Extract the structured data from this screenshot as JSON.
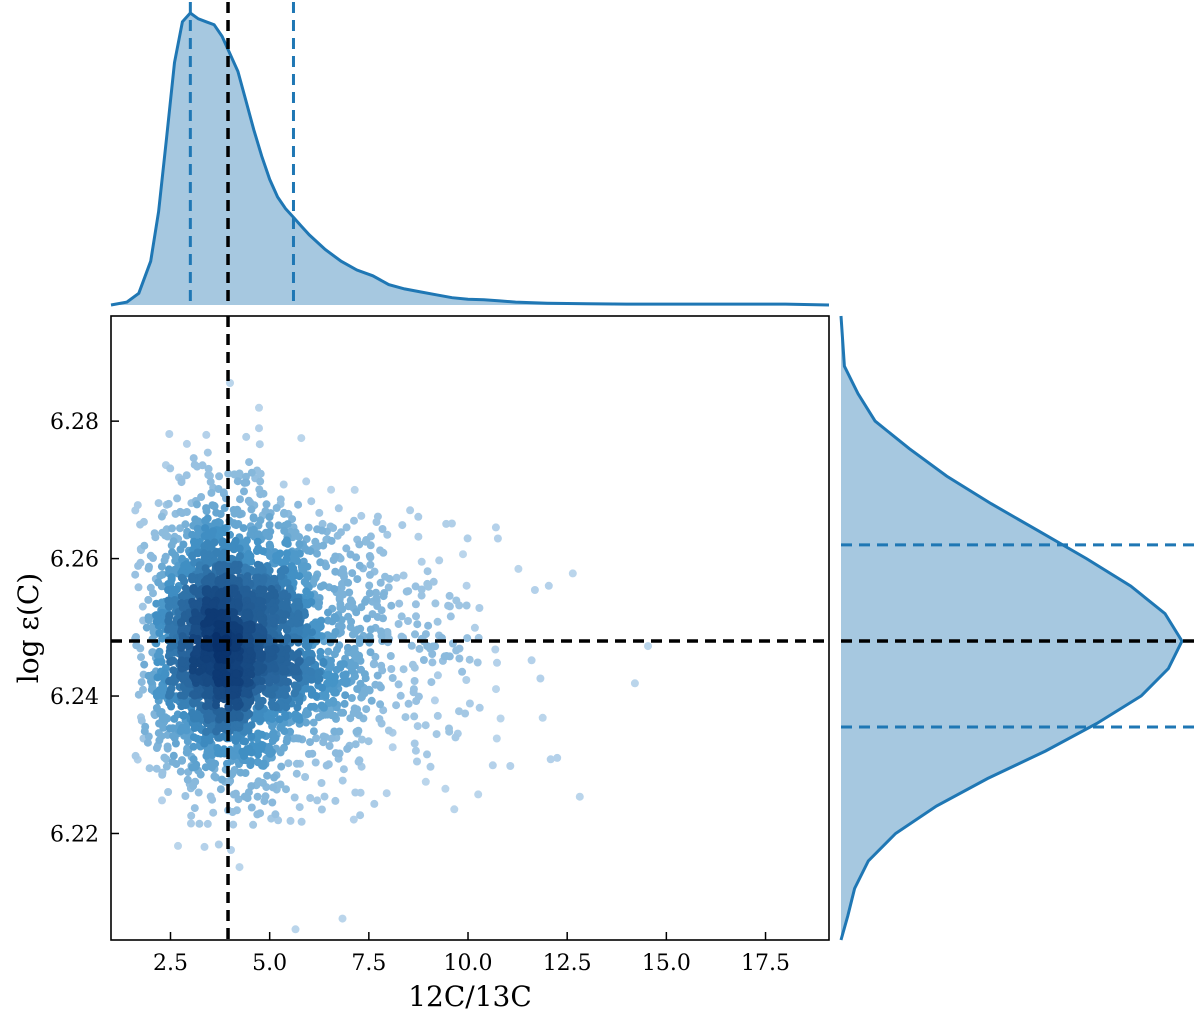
{
  "chart_data": {
    "type": "scatter",
    "title": "",
    "xlabel": "12C/13C",
    "ylabel": "log ε(C)",
    "xlim": [
      1.0,
      19.1
    ],
    "ylim": [
      6.2045,
      6.2953
    ],
    "x_ticks": [
      2.5,
      5.0,
      7.5,
      10.0,
      12.5,
      15.0,
      17.5
    ],
    "x_tick_labels": [
      "2.5",
      "5.0",
      "7.5",
      "10.0",
      "12.5",
      "15.0",
      "17.5"
    ],
    "y_ticks": [
      6.22,
      6.24,
      6.26,
      6.28
    ],
    "y_tick_labels": [
      "6.22",
      "6.24",
      "6.26",
      "6.28"
    ],
    "grid": false,
    "legend": "none",
    "colors": {
      "marginal": "#1f77b4",
      "fill": "#a6c8e0",
      "median": "#000000",
      "scatter_dense": "#08306b",
      "scatter_sparse": "#c6dbef"
    },
    "scatter_model": {
      "n_points": 3200,
      "x_distribution": "lognormal",
      "x_peak": 3.7,
      "y_mean": 6.248,
      "y_std": 0.01
    },
    "median_x": 3.95,
    "median_y": 6.248,
    "x_percentile_lines": [
      3.0,
      5.6
    ],
    "y_percentile_lines": [
      6.2355,
      6.262
    ],
    "top_marginal": {
      "x": [
        1.0,
        1.4,
        1.7,
        2.0,
        2.2,
        2.4,
        2.6,
        2.8,
        3.0,
        3.2,
        3.4,
        3.6,
        3.8,
        4.0,
        4.2,
        4.4,
        4.6,
        4.8,
        5.0,
        5.2,
        5.4,
        5.6,
        5.8,
        6.0,
        6.4,
        6.8,
        7.2,
        7.6,
        8.0,
        8.4,
        8.8,
        9.2,
        9.6,
        10.0,
        10.4,
        10.8,
        11.2,
        12.0,
        13.0,
        14.0,
        15.0,
        16.0,
        17.0,
        18.0,
        19.1
      ],
      "density": [
        0.0,
        0.01,
        0.04,
        0.15,
        0.32,
        0.57,
        0.83,
        0.97,
        1.0,
        0.98,
        0.97,
        0.96,
        0.92,
        0.86,
        0.8,
        0.7,
        0.6,
        0.51,
        0.43,
        0.37,
        0.33,
        0.3,
        0.27,
        0.24,
        0.19,
        0.15,
        0.12,
        0.1,
        0.07,
        0.055,
        0.045,
        0.035,
        0.025,
        0.02,
        0.018,
        0.014,
        0.01,
        0.006,
        0.004,
        0.003,
        0.003,
        0.003,
        0.003,
        0.003,
        0.0
      ]
    },
    "right_marginal": {
      "y": [
        6.2045,
        6.208,
        6.212,
        6.216,
        6.22,
        6.224,
        6.228,
        6.232,
        6.236,
        6.24,
        6.244,
        6.248,
        6.252,
        6.256,
        6.26,
        6.264,
        6.268,
        6.272,
        6.276,
        6.28,
        6.284,
        6.288,
        6.2953
      ],
      "density": [
        0.0,
        0.02,
        0.04,
        0.08,
        0.16,
        0.28,
        0.43,
        0.6,
        0.75,
        0.88,
        0.96,
        1.0,
        0.95,
        0.85,
        0.72,
        0.58,
        0.44,
        0.31,
        0.2,
        0.1,
        0.05,
        0.01,
        0.0
      ]
    }
  }
}
